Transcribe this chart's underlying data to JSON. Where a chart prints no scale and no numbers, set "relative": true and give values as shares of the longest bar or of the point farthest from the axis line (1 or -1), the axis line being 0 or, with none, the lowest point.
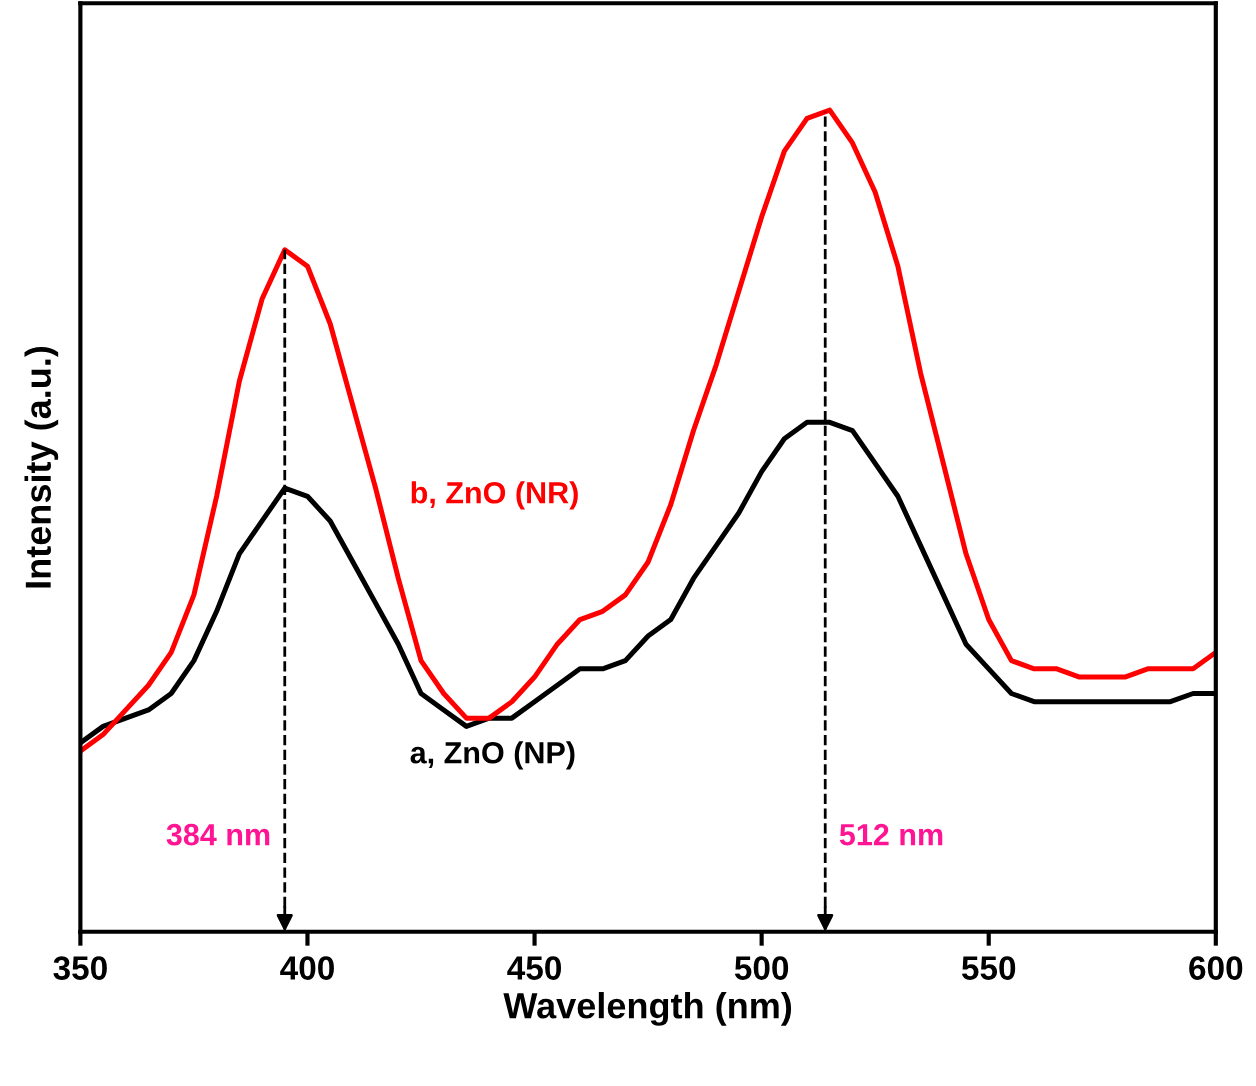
{
  "chart_data": {
    "type": "line",
    "relative": true,
    "xlabel": "Wavelength (nm)",
    "ylabel": "Intensity (a.u.)",
    "x": [
      350,
      355,
      360,
      365,
      370,
      375,
      380,
      385,
      390,
      395,
      400,
      405,
      410,
      415,
      420,
      425,
      430,
      435,
      440,
      445,
      450,
      455,
      460,
      465,
      470,
      475,
      480,
      485,
      490,
      495,
      500,
      505,
      510,
      515,
      520,
      525,
      530,
      535,
      540,
      545,
      550,
      555,
      560,
      565,
      570,
      575,
      580,
      585,
      590,
      595,
      600
    ],
    "series": [
      {
        "name": "a, ZnO (NP)",
        "color": "#000000",
        "values": [
          0.23,
          0.25,
          0.26,
          0.27,
          0.29,
          0.33,
          0.39,
          0.46,
          0.5,
          0.54,
          0.53,
          0.5,
          0.45,
          0.4,
          0.35,
          0.29,
          0.27,
          0.25,
          0.26,
          0.26,
          0.28,
          0.3,
          0.32,
          0.32,
          0.33,
          0.36,
          0.38,
          0.43,
          0.47,
          0.51,
          0.56,
          0.6,
          0.62,
          0.62,
          0.61,
          0.57,
          0.53,
          0.47,
          0.41,
          0.35,
          0.32,
          0.29,
          0.28,
          0.28,
          0.28,
          0.28,
          0.28,
          0.28,
          0.28,
          0.29,
          0.29
        ]
      },
      {
        "name": "b, ZnO (NR)",
        "color": "#ff0000",
        "values": [
          0.22,
          0.24,
          0.27,
          0.3,
          0.34,
          0.41,
          0.53,
          0.67,
          0.77,
          0.83,
          0.81,
          0.74,
          0.64,
          0.54,
          0.43,
          0.33,
          0.29,
          0.26,
          0.26,
          0.28,
          0.31,
          0.35,
          0.38,
          0.39,
          0.41,
          0.45,
          0.52,
          0.61,
          0.69,
          0.78,
          0.87,
          0.95,
          0.99,
          1.0,
          0.96,
          0.9,
          0.81,
          0.68,
          0.57,
          0.46,
          0.38,
          0.33,
          0.32,
          0.32,
          0.31,
          0.31,
          0.31,
          0.32,
          0.32,
          0.32,
          0.34
        ]
      }
    ],
    "ref_lines": [
      {
        "axis": "x",
        "value": 395,
        "label": "384 nm",
        "color": "#000000",
        "line_style": "dashed"
      },
      {
        "axis": "x",
        "value": 514,
        "label": "512 nm",
        "color": "#000000",
        "line_style": "dashed"
      }
    ],
    "xlim": [
      350,
      600
    ],
    "xticks": [
      350,
      400,
      450,
      500,
      550,
      600
    ],
    "tick_labels": "x",
    "grid": false,
    "legend": false,
    "marker": "none",
    "line_style": "solid"
  }
}
